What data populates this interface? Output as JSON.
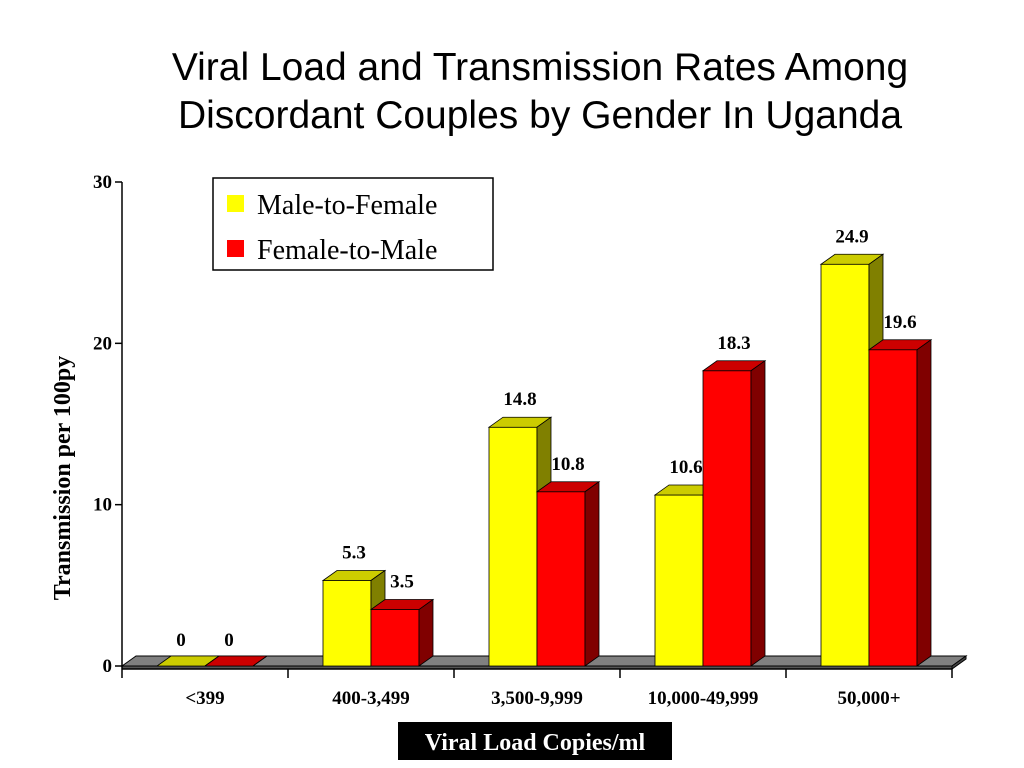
{
  "title_line1": "Viral Load and Transmission Rates Among",
  "title_line2": "Discordant Couples by Gender In Uganda",
  "chart_data": {
    "type": "bar",
    "categories": [
      "<399",
      "400-3,499",
      "3,500-9,999",
      "10,000-49,999",
      "50,000+"
    ],
    "series": [
      {
        "name": "Male-to-Female",
        "values": [
          0,
          5.3,
          14.8,
          10.6,
          24.9
        ]
      },
      {
        "name": "Female-to-Male",
        "values": [
          0,
          3.5,
          10.8,
          18.3,
          19.6
        ]
      }
    ],
    "data_labels": [
      [
        "0",
        "5.3",
        "14.8",
        "10.6",
        "24.9"
      ],
      [
        "0",
        "3.5",
        "10.8",
        "18.3",
        "19.6"
      ]
    ],
    "ylabel": "Transmission per 100py",
    "xlabel": "Viral Load Copies/ml",
    "ylim": [
      0,
      30
    ],
    "yticks": [
      "0",
      "10",
      "20",
      "30"
    ],
    "legend_position": "top-left inside",
    "grid": false,
    "three_d": true,
    "colors": {
      "male_front": "#ffff00",
      "male_top": "#cccc00",
      "male_side": "#808000",
      "female_front": "#ff0000",
      "female_top": "#cc0000",
      "female_side": "#800000",
      "floor": "#808080"
    }
  }
}
